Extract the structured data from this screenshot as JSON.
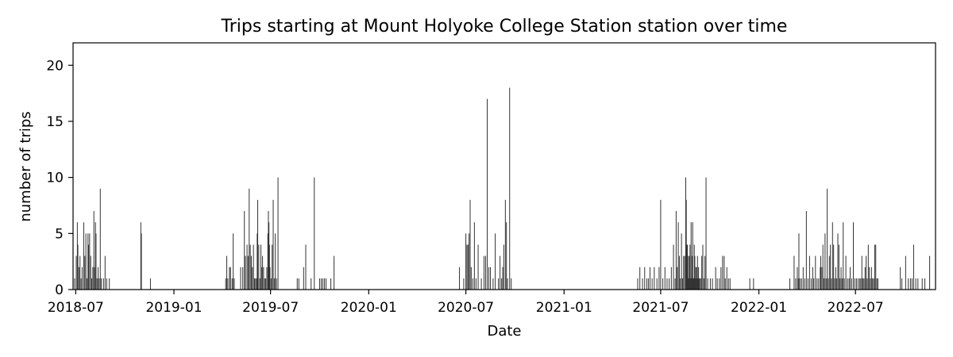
{
  "chart_data": {
    "type": "bar",
    "title": "Trips starting at Mount Holyoke College Station station over time",
    "xlabel": "Date",
    "ylabel": "number of trips",
    "ylim": [
      0,
      22
    ],
    "xlim": [
      "2018-06-26",
      "2022-11-28"
    ],
    "grid": false,
    "bar_color": "#333333",
    "x_ticks": [
      "2018-07",
      "2019-01",
      "2019-07",
      "2020-01",
      "2020-07",
      "2021-01",
      "2021-07",
      "2022-01",
      "2022-07"
    ],
    "y_ticks": [
      0,
      5,
      10,
      15,
      20
    ],
    "points": [
      [
        "2018-06-29",
        1
      ],
      [
        "2018-07-02",
        3
      ],
      [
        "2018-07-04",
        6
      ],
      [
        "2018-07-05",
        4
      ],
      [
        "2018-07-07",
        2
      ],
      [
        "2018-07-09",
        3
      ],
      [
        "2018-07-11",
        1
      ],
      [
        "2018-07-13",
        2
      ],
      [
        "2018-07-16",
        6
      ],
      [
        "2018-07-18",
        3
      ],
      [
        "2018-07-20",
        5
      ],
      [
        "2018-07-22",
        1
      ],
      [
        "2018-07-24",
        5
      ],
      [
        "2018-07-25",
        4
      ],
      [
        "2018-07-27",
        5
      ],
      [
        "2018-07-29",
        3
      ],
      [
        "2018-07-31",
        1
      ],
      [
        "2018-08-02",
        2
      ],
      [
        "2018-08-04",
        7
      ],
      [
        "2018-08-05",
        2
      ],
      [
        "2018-08-07",
        6
      ],
      [
        "2018-08-08",
        5
      ],
      [
        "2018-08-10",
        1
      ],
      [
        "2018-08-12",
        2
      ],
      [
        "2018-08-14",
        1
      ],
      [
        "2018-08-16",
        9
      ],
      [
        "2018-08-18",
        1
      ],
      [
        "2018-08-22",
        1
      ],
      [
        "2018-08-25",
        3
      ],
      [
        "2018-08-28",
        1
      ],
      [
        "2018-09-02",
        1
      ],
      [
        "2018-10-31",
        6
      ],
      [
        "2018-11-01",
        5
      ],
      [
        "2018-11-18",
        1
      ],
      [
        "2019-04-08",
        1
      ],
      [
        "2019-04-10",
        3
      ],
      [
        "2019-04-12",
        1
      ],
      [
        "2019-04-15",
        2
      ],
      [
        "2019-04-17",
        2
      ],
      [
        "2019-04-20",
        1
      ],
      [
        "2019-04-22",
        5
      ],
      [
        "2019-04-24",
        1
      ],
      [
        "2019-05-06",
        2
      ],
      [
        "2019-05-10",
        2
      ],
      [
        "2019-05-13",
        7
      ],
      [
        "2019-05-15",
        3
      ],
      [
        "2019-05-18",
        4
      ],
      [
        "2019-05-20",
        3
      ],
      [
        "2019-05-22",
        9
      ],
      [
        "2019-05-24",
        4
      ],
      [
        "2019-05-26",
        3
      ],
      [
        "2019-05-28",
        2
      ],
      [
        "2019-05-30",
        4
      ],
      [
        "2019-06-01",
        1
      ],
      [
        "2019-06-03",
        1
      ],
      [
        "2019-06-05",
        1
      ],
      [
        "2019-06-06",
        5
      ],
      [
        "2019-06-07",
        8
      ],
      [
        "2019-06-09",
        4
      ],
      [
        "2019-06-11",
        1
      ],
      [
        "2019-06-13",
        4
      ],
      [
        "2019-06-14",
        2
      ],
      [
        "2019-06-16",
        3
      ],
      [
        "2019-06-18",
        2
      ],
      [
        "2019-06-20",
        1
      ],
      [
        "2019-06-22",
        1
      ],
      [
        "2019-06-24",
        2
      ],
      [
        "2019-06-26",
        5
      ],
      [
        "2019-06-27",
        7
      ],
      [
        "2019-06-28",
        6
      ],
      [
        "2019-06-29",
        4
      ],
      [
        "2019-06-30",
        2
      ],
      [
        "2019-07-02",
        1
      ],
      [
        "2019-07-04",
        4
      ],
      [
        "2019-07-06",
        8
      ],
      [
        "2019-07-08",
        1
      ],
      [
        "2019-07-10",
        5
      ],
      [
        "2019-07-12",
        1
      ],
      [
        "2019-07-15",
        10
      ],
      [
        "2019-08-20",
        1
      ],
      [
        "2019-08-23",
        1
      ],
      [
        "2019-09-01",
        2
      ],
      [
        "2019-09-05",
        4
      ],
      [
        "2019-09-15",
        1
      ],
      [
        "2019-09-21",
        10
      ],
      [
        "2019-10-01",
        1
      ],
      [
        "2019-10-04",
        1
      ],
      [
        "2019-10-07",
        1
      ],
      [
        "2019-10-10",
        1
      ],
      [
        "2019-10-13",
        1
      ],
      [
        "2019-10-22",
        1
      ],
      [
        "2019-10-28",
        3
      ],
      [
        "2020-06-19",
        2
      ],
      [
        "2020-06-27",
        1
      ],
      [
        "2020-07-01",
        5
      ],
      [
        "2020-07-03",
        4
      ],
      [
        "2020-07-05",
        4
      ],
      [
        "2020-07-07",
        5
      ],
      [
        "2020-07-09",
        8
      ],
      [
        "2020-07-11",
        2
      ],
      [
        "2020-07-14",
        1
      ],
      [
        "2020-07-17",
        6
      ],
      [
        "2020-07-20",
        1
      ],
      [
        "2020-07-24",
        4
      ],
      [
        "2020-07-30",
        1
      ],
      [
        "2020-08-04",
        3
      ],
      [
        "2020-08-07",
        3
      ],
      [
        "2020-08-10",
        17
      ],
      [
        "2020-08-13",
        2
      ],
      [
        "2020-08-16",
        2
      ],
      [
        "2020-08-21",
        1
      ],
      [
        "2020-08-25",
        5
      ],
      [
        "2020-08-31",
        1
      ],
      [
        "2020-09-03",
        3
      ],
      [
        "2020-09-06",
        1
      ],
      [
        "2020-09-08",
        2
      ],
      [
        "2020-09-10",
        4
      ],
      [
        "2020-09-13",
        8
      ],
      [
        "2020-09-15",
        6
      ],
      [
        "2020-09-17",
        1
      ],
      [
        "2020-09-21",
        18
      ],
      [
        "2020-09-24",
        1
      ],
      [
        "2021-05-19",
        1
      ],
      [
        "2021-05-23",
        2
      ],
      [
        "2021-05-28",
        1
      ],
      [
        "2021-06-01",
        2
      ],
      [
        "2021-06-05",
        1
      ],
      [
        "2021-06-08",
        1
      ],
      [
        "2021-06-11",
        2
      ],
      [
        "2021-06-15",
        1
      ],
      [
        "2021-06-19",
        2
      ],
      [
        "2021-06-24",
        1
      ],
      [
        "2021-06-28",
        2
      ],
      [
        "2021-07-01",
        8
      ],
      [
        "2021-07-05",
        1
      ],
      [
        "2021-07-09",
        2
      ],
      [
        "2021-07-13",
        1
      ],
      [
        "2021-07-17",
        1
      ],
      [
        "2021-07-21",
        2
      ],
      [
        "2021-07-25",
        4
      ],
      [
        "2021-07-28",
        1
      ],
      [
        "2021-07-30",
        7
      ],
      [
        "2021-08-01",
        2
      ],
      [
        "2021-08-03",
        6
      ],
      [
        "2021-08-05",
        3
      ],
      [
        "2021-08-07",
        1
      ],
      [
        "2021-08-09",
        5
      ],
      [
        "2021-08-11",
        1
      ],
      [
        "2021-08-13",
        3
      ],
      [
        "2021-08-15",
        3
      ],
      [
        "2021-08-17",
        10
      ],
      [
        "2021-08-18",
        8
      ],
      [
        "2021-08-19",
        4
      ],
      [
        "2021-08-20",
        4
      ],
      [
        "2021-08-21",
        1
      ],
      [
        "2021-08-22",
        3
      ],
      [
        "2021-08-23",
        1
      ],
      [
        "2021-08-24",
        3
      ],
      [
        "2021-08-25",
        4
      ],
      [
        "2021-08-26",
        1
      ],
      [
        "2021-08-27",
        6
      ],
      [
        "2021-08-28",
        1
      ],
      [
        "2021-08-29",
        3
      ],
      [
        "2021-08-30",
        6
      ],
      [
        "2021-08-31",
        1
      ],
      [
        "2021-09-01",
        1
      ],
      [
        "2021-09-02",
        4
      ],
      [
        "2021-09-03",
        3
      ],
      [
        "2021-09-04",
        1
      ],
      [
        "2021-09-05",
        2
      ],
      [
        "2021-09-06",
        2
      ],
      [
        "2021-09-07",
        1
      ],
      [
        "2021-09-08",
        3
      ],
      [
        "2021-09-09",
        1
      ],
      [
        "2021-09-10",
        2
      ],
      [
        "2021-09-11",
        1
      ],
      [
        "2021-09-12",
        1
      ],
      [
        "2021-09-14",
        1
      ],
      [
        "2021-09-16",
        3
      ],
      [
        "2021-09-18",
        4
      ],
      [
        "2021-09-20",
        1
      ],
      [
        "2021-09-22",
        3
      ],
      [
        "2021-09-24",
        10
      ],
      [
        "2021-09-27",
        1
      ],
      [
        "2021-10-02",
        1
      ],
      [
        "2021-10-06",
        1
      ],
      [
        "2021-10-12",
        2
      ],
      [
        "2021-10-15",
        1
      ],
      [
        "2021-10-19",
        1
      ],
      [
        "2021-10-22",
        2
      ],
      [
        "2021-10-25",
        3
      ],
      [
        "2021-10-28",
        3
      ],
      [
        "2021-10-30",
        1
      ],
      [
        "2021-11-02",
        2
      ],
      [
        "2021-11-05",
        1
      ],
      [
        "2021-11-08",
        1
      ],
      [
        "2021-12-15",
        1
      ],
      [
        "2021-12-22",
        1
      ],
      [
        "2022-02-28",
        1
      ],
      [
        "2022-03-08",
        3
      ],
      [
        "2022-03-11",
        1
      ],
      [
        "2022-03-14",
        2
      ],
      [
        "2022-03-16",
        1
      ],
      [
        "2022-03-17",
        5
      ],
      [
        "2022-03-19",
        1
      ],
      [
        "2022-03-22",
        1
      ],
      [
        "2022-03-25",
        2
      ],
      [
        "2022-03-28",
        1
      ],
      [
        "2022-03-31",
        7
      ],
      [
        "2022-04-03",
        1
      ],
      [
        "2022-04-06",
        3
      ],
      [
        "2022-04-09",
        1
      ],
      [
        "2022-04-12",
        2
      ],
      [
        "2022-04-14",
        1
      ],
      [
        "2022-04-17",
        3
      ],
      [
        "2022-04-20",
        1
      ],
      [
        "2022-04-23",
        1
      ],
      [
        "2022-04-26",
        2
      ],
      [
        "2022-04-27",
        3
      ],
      [
        "2022-04-29",
        2
      ],
      [
        "2022-05-01",
        4
      ],
      [
        "2022-05-03",
        1
      ],
      [
        "2022-05-05",
        5
      ],
      [
        "2022-05-07",
        1
      ],
      [
        "2022-05-09",
        9
      ],
      [
        "2022-05-11",
        1
      ],
      [
        "2022-05-13",
        3
      ],
      [
        "2022-05-15",
        4
      ],
      [
        "2022-05-17",
        1
      ],
      [
        "2022-05-19",
        6
      ],
      [
        "2022-05-21",
        4
      ],
      [
        "2022-05-23",
        1
      ],
      [
        "2022-05-25",
        2
      ],
      [
        "2022-05-27",
        1
      ],
      [
        "2022-05-29",
        5
      ],
      [
        "2022-05-31",
        4
      ],
      [
        "2022-06-02",
        1
      ],
      [
        "2022-06-04",
        2
      ],
      [
        "2022-06-06",
        1
      ],
      [
        "2022-06-08",
        6
      ],
      [
        "2022-06-10",
        1
      ],
      [
        "2022-06-13",
        3
      ],
      [
        "2022-06-16",
        1
      ],
      [
        "2022-06-19",
        1
      ],
      [
        "2022-06-21",
        2
      ],
      [
        "2022-06-24",
        1
      ],
      [
        "2022-06-27",
        6
      ],
      [
        "2022-06-30",
        1
      ],
      [
        "2022-07-03",
        1
      ],
      [
        "2022-07-06",
        1
      ],
      [
        "2022-07-09",
        1
      ],
      [
        "2022-07-11",
        1
      ],
      [
        "2022-07-13",
        3
      ],
      [
        "2022-07-15",
        1
      ],
      [
        "2022-07-17",
        1
      ],
      [
        "2022-07-19",
        2
      ],
      [
        "2022-07-21",
        3
      ],
      [
        "2022-07-23",
        1
      ],
      [
        "2022-07-25",
        4
      ],
      [
        "2022-07-27",
        2
      ],
      [
        "2022-07-29",
        1
      ],
      [
        "2022-07-31",
        2
      ],
      [
        "2022-08-02",
        1
      ],
      [
        "2022-08-04",
        1
      ],
      [
        "2022-08-06",
        4
      ],
      [
        "2022-08-08",
        4
      ],
      [
        "2022-08-10",
        1
      ],
      [
        "2022-08-12",
        1
      ],
      [
        "2022-09-23",
        2
      ],
      [
        "2022-09-26",
        1
      ],
      [
        "2022-10-03",
        3
      ],
      [
        "2022-10-08",
        1
      ],
      [
        "2022-10-12",
        1
      ],
      [
        "2022-10-15",
        1
      ],
      [
        "2022-10-18",
        4
      ],
      [
        "2022-10-22",
        1
      ],
      [
        "2022-10-26",
        1
      ],
      [
        "2022-11-03",
        1
      ],
      [
        "2022-11-08",
        1
      ],
      [
        "2022-11-17",
        3
      ]
    ]
  }
}
